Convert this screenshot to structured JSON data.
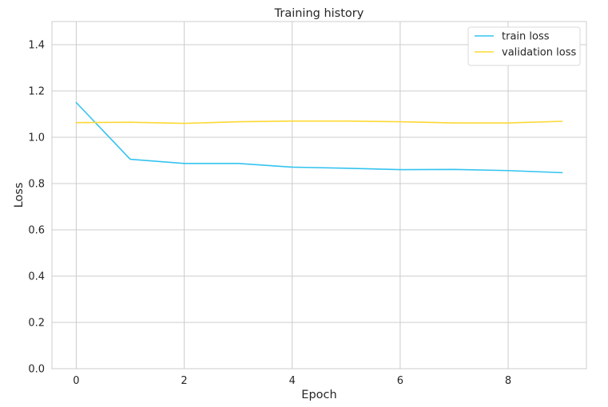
{
  "chart_data": {
    "type": "line",
    "title": "Training history",
    "xlabel": "Epoch",
    "ylabel": "Loss",
    "xlim": [
      -0.45,
      9.45
    ],
    "ylim": [
      0.0,
      1.5
    ],
    "x_ticks": [
      0,
      2,
      4,
      6,
      8
    ],
    "y_ticks": [
      0.0,
      0.2,
      0.4,
      0.6,
      0.8,
      1.0,
      1.2,
      1.4
    ],
    "x_tick_labels": [
      "0",
      "2",
      "4",
      "6",
      "8"
    ],
    "y_tick_labels": [
      "0.0",
      "0.2",
      "0.4",
      "0.6",
      "0.8",
      "1.0",
      "1.2",
      "1.4"
    ],
    "grid": true,
    "legend_position": "top-right",
    "x": [
      0,
      1,
      2,
      3,
      4,
      5,
      6,
      7,
      8,
      9
    ],
    "series": [
      {
        "name": "train loss",
        "color": "#33c3f0",
        "values": [
          1.15,
          0.905,
          0.887,
          0.887,
          0.871,
          0.866,
          0.86,
          0.861,
          0.856,
          0.847
        ]
      },
      {
        "name": "validation loss",
        "color": "#fdd835",
        "values": [
          1.063,
          1.065,
          1.06,
          1.067,
          1.07,
          1.07,
          1.067,
          1.062,
          1.062,
          1.069
        ]
      }
    ]
  }
}
